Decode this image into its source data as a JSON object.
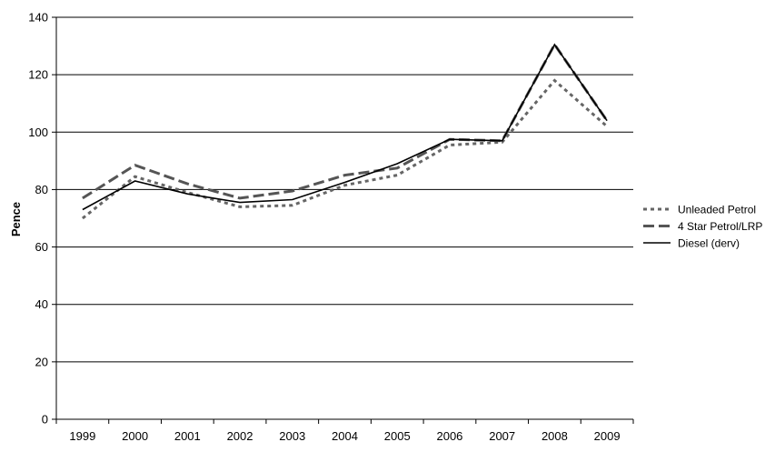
{
  "chart_data": {
    "type": "line",
    "title": "",
    "xlabel": "",
    "ylabel": "Pence",
    "ylim": [
      0,
      140
    ],
    "yticks": [
      0,
      20,
      40,
      60,
      80,
      100,
      120,
      140
    ],
    "categories": [
      "1999",
      "2000",
      "2001",
      "2002",
      "2003",
      "2004",
      "2005",
      "2006",
      "2007",
      "2008",
      "2009"
    ],
    "grid": "horizontal",
    "legend_position": "right",
    "series": [
      {
        "name": "Unleaded Petrol",
        "style": "dotted",
        "color": "#666666",
        "values": [
          70,
          84.5,
          79,
          74,
          74.5,
          81.5,
          85,
          95.5,
          96.5,
          118,
          102
        ]
      },
      {
        "name": "4 Star Petrol/LRP",
        "style": "dashed",
        "color": "#555555",
        "values": [
          77,
          88.5,
          82,
          77,
          79.5,
          85,
          87.5,
          97.5,
          97,
          130.5,
          104
        ]
      },
      {
        "name": "Diesel (derv)",
        "style": "solid",
        "color": "#000000",
        "values": [
          73,
          83,
          78.5,
          75.5,
          76.5,
          82.5,
          89,
          97.5,
          97,
          130.5,
          104
        ]
      }
    ]
  }
}
